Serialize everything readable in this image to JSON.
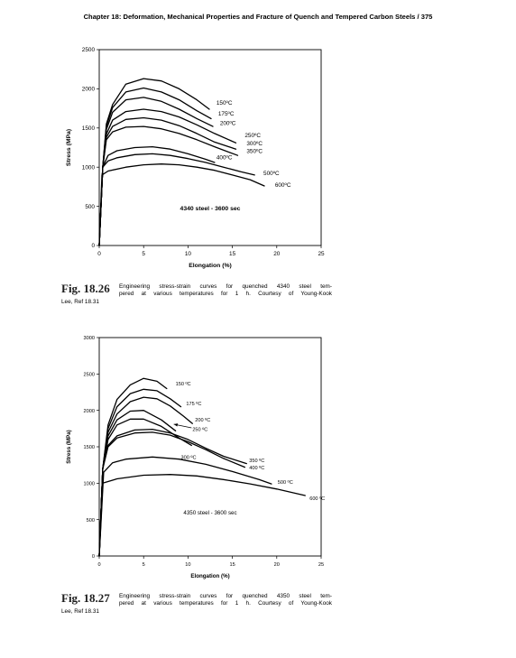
{
  "running_head": "Chapter 18: Deformation, Mechanical Properties and Fracture of Quench and Tempered Carbon Steels / 375",
  "figures": [
    {
      "label": "Fig. 18.26",
      "caption_lines": [
        "Engineering stress-strain curves for quenched 4340 steel tem-",
        "pered at various temperatures for 1 h. Courtesy of Young-Kook"
      ],
      "caption_tail": "Lee, Ref 18.31"
    },
    {
      "label": "Fig. 18.27",
      "caption_lines": [
        "Engineering stress-strain curves for quenched 4350 steel tem-",
        "pered at various temperatures for 1 h. Courtesy of Young-Kook"
      ],
      "caption_tail": "Lee, Ref 18.31"
    }
  ],
  "chart_data": [
    {
      "type": "line",
      "annotation": "4340 steel - 3600 sec",
      "xlabel": "Elongation (%)",
      "ylabel": "Stress (MPa)",
      "xlim": [
        0,
        25
      ],
      "ylim": [
        0,
        2500
      ],
      "xticks": [
        0,
        5,
        10,
        15,
        20,
        25
      ],
      "yticks": [
        0,
        500,
        1000,
        1500,
        2000,
        2500
      ],
      "grid": false,
      "series": [
        {
          "name": "150ºC",
          "points": [
            [
              0,
              0
            ],
            [
              0.4,
              1000
            ],
            [
              0.8,
              1550
            ],
            [
              1.5,
              1800
            ],
            [
              3,
              2060
            ],
            [
              5,
              2130
            ],
            [
              7,
              2100
            ],
            [
              9,
              2000
            ],
            [
              11,
              1860
            ],
            [
              12.4,
              1740
            ]
          ]
        },
        {
          "name": "175ºC",
          "points": [
            [
              0,
              0
            ],
            [
              0.4,
              1000
            ],
            [
              0.8,
              1520
            ],
            [
              1.5,
              1760
            ],
            [
              3,
              1960
            ],
            [
              5,
              2010
            ],
            [
              7,
              1960
            ],
            [
              9,
              1860
            ],
            [
              11,
              1720
            ],
            [
              12.6,
              1620
            ]
          ]
        },
        {
          "name": "200ºC",
          "points": [
            [
              0,
              0
            ],
            [
              0.4,
              1000
            ],
            [
              0.8,
              1480
            ],
            [
              1.5,
              1700
            ],
            [
              3,
              1860
            ],
            [
              5,
              1890
            ],
            [
              7,
              1840
            ],
            [
              9,
              1740
            ],
            [
              11,
              1620
            ],
            [
              12.8,
              1520
            ]
          ]
        },
        {
          "name": "250ºC",
          "points": [
            [
              0,
              0
            ],
            [
              0.4,
              1000
            ],
            [
              0.8,
              1420
            ],
            [
              1.5,
              1600
            ],
            [
              3,
              1710
            ],
            [
              5,
              1740
            ],
            [
              7,
              1710
            ],
            [
              9,
              1640
            ],
            [
              11,
              1540
            ],
            [
              13,
              1430
            ],
            [
              15.4,
              1310
            ]
          ]
        },
        {
          "name": "300ºC",
          "points": [
            [
              0,
              0
            ],
            [
              0.4,
              1000
            ],
            [
              0.8,
              1380
            ],
            [
              1.5,
              1520
            ],
            [
              3,
              1610
            ],
            [
              5,
              1630
            ],
            [
              7,
              1600
            ],
            [
              9,
              1530
            ],
            [
              11,
              1430
            ],
            [
              13,
              1320
            ],
            [
              15.4,
              1230
            ]
          ]
        },
        {
          "name": "350ºC",
          "points": [
            [
              0,
              0
            ],
            [
              0.4,
              1000
            ],
            [
              0.8,
              1350
            ],
            [
              1.5,
              1450
            ],
            [
              3,
              1510
            ],
            [
              5,
              1520
            ],
            [
              7,
              1490
            ],
            [
              9,
              1430
            ],
            [
              11,
              1350
            ],
            [
              13,
              1260
            ],
            [
              15.6,
              1150
            ]
          ]
        },
        {
          "name": "400ºC",
          "points": [
            [
              0,
              0
            ],
            [
              0.4,
              1000
            ],
            [
              1,
              1150
            ],
            [
              2,
              1210
            ],
            [
              4,
              1250
            ],
            [
              6,
              1260
            ],
            [
              8,
              1230
            ],
            [
              10,
              1170
            ],
            [
              12,
              1100
            ],
            [
              13,
              1060
            ]
          ]
        },
        {
          "name": "500ºC",
          "points": [
            [
              0,
              0
            ],
            [
              0.4,
              1000
            ],
            [
              1,
              1080
            ],
            [
              2,
              1120
            ],
            [
              4,
              1160
            ],
            [
              6,
              1170
            ],
            [
              8,
              1150
            ],
            [
              10,
              1110
            ],
            [
              12,
              1060
            ],
            [
              14,
              1000
            ],
            [
              16,
              940
            ],
            [
              17.5,
              900
            ]
          ]
        },
        {
          "name": "600ºC",
          "points": [
            [
              0,
              0
            ],
            [
              0.3,
              900
            ],
            [
              1,
              950
            ],
            [
              3,
              1000
            ],
            [
              5,
              1030
            ],
            [
              7,
              1040
            ],
            [
              9,
              1030
            ],
            [
              11,
              1000
            ],
            [
              13,
              960
            ],
            [
              15,
              900
            ],
            [
              17,
              840
            ],
            [
              18.6,
              760
            ]
          ]
        }
      ],
      "labels": [
        {
          "text": "150ºC",
          "x": 13.2,
          "y": 1800
        },
        {
          "text": "175ºC",
          "x": 13.4,
          "y": 1660
        },
        {
          "text": "200ºC",
          "x": 13.6,
          "y": 1540
        },
        {
          "text": "250ºC",
          "x": 16.4,
          "y": 1380
        },
        {
          "text": "300ºC",
          "x": 16.6,
          "y": 1280
        },
        {
          "text": "350ºC",
          "x": 16.6,
          "y": 1180
        },
        {
          "text": "400ºC",
          "x": 13.2,
          "y": 1100
        },
        {
          "text": "500ºC",
          "x": 18.5,
          "y": 900
        },
        {
          "text": "600ºC",
          "x": 19.8,
          "y": 750
        }
      ]
    },
    {
      "type": "line",
      "annotation": "4350 steel - 3600 sec",
      "xlabel": "Elongation (%)",
      "ylabel": "Stress (MPa)",
      "xlim": [
        0,
        25
      ],
      "ylim": [
        0,
        3000
      ],
      "xticks": [
        0,
        5,
        10,
        15,
        20,
        25
      ],
      "yticks": [
        0,
        500,
        1000,
        1500,
        2000,
        2500,
        3000
      ],
      "grid": false,
      "series": [
        {
          "name": "150 ºC",
          "points": [
            [
              0,
              0
            ],
            [
              0.4,
              1200
            ],
            [
              1,
              1800
            ],
            [
              2,
              2150
            ],
            [
              3.5,
              2350
            ],
            [
              5,
              2440
            ],
            [
              6.5,
              2400
            ],
            [
              7.6,
              2300
            ]
          ]
        },
        {
          "name": "175 ºC",
          "points": [
            [
              0,
              0
            ],
            [
              0.4,
              1200
            ],
            [
              1,
              1750
            ],
            [
              2,
              2050
            ],
            [
              3.5,
              2230
            ],
            [
              5,
              2290
            ],
            [
              6.5,
              2270
            ],
            [
              8,
              2160
            ],
            [
              9.2,
              2050
            ]
          ]
        },
        {
          "name": "200 ºC",
          "points": [
            [
              0,
              0
            ],
            [
              0.4,
              1200
            ],
            [
              1,
              1700
            ],
            [
              2,
              1950
            ],
            [
              3.5,
              2120
            ],
            [
              5,
              2180
            ],
            [
              6.5,
              2160
            ],
            [
              8,
              2060
            ],
            [
              9.5,
              1920
            ],
            [
              10.5,
              1820
            ]
          ]
        },
        {
          "name": "250 ºC",
          "points": [
            [
              0,
              0
            ],
            [
              0.4,
              1200
            ],
            [
              1,
              1650
            ],
            [
              2,
              1870
            ],
            [
              3.5,
              1990
            ],
            [
              5,
              2000
            ],
            [
              7,
              1870
            ],
            [
              8.6,
              1720
            ]
          ]
        },
        {
          "name": "300 ºC",
          "points": [
            [
              0,
              0
            ],
            [
              0.4,
              1200
            ],
            [
              1,
              1600
            ],
            [
              2,
              1800
            ],
            [
              3.5,
              1880
            ],
            [
              5,
              1880
            ],
            [
              7,
              1780
            ],
            [
              9,
              1620
            ],
            [
              10.4,
              1520
            ]
          ]
        },
        {
          "name": "350 ºC",
          "points": [
            [
              0,
              0
            ],
            [
              0.4,
              1200
            ],
            [
              1,
              1520
            ],
            [
              2,
              1650
            ],
            [
              4,
              1730
            ],
            [
              6,
              1740
            ],
            [
              8,
              1690
            ],
            [
              10,
              1600
            ],
            [
              12,
              1480
            ],
            [
              14,
              1370
            ],
            [
              16.6,
              1270
            ]
          ]
        },
        {
          "name": "400 ºC",
          "points": [
            [
              0,
              0
            ],
            [
              0.4,
              1200
            ],
            [
              1,
              1500
            ],
            [
              2,
              1620
            ],
            [
              4,
              1690
            ],
            [
              6,
              1700
            ],
            [
              8,
              1660
            ],
            [
              10,
              1570
            ],
            [
              12,
              1460
            ],
            [
              14,
              1340
            ],
            [
              16.4,
              1220
            ]
          ]
        },
        {
          "name": "500 ºC",
          "points": [
            [
              0,
              0
            ],
            [
              0.5,
              1150
            ],
            [
              1.5,
              1280
            ],
            [
              3,
              1330
            ],
            [
              6,
              1360
            ],
            [
              9,
              1330
            ],
            [
              12,
              1260
            ],
            [
              15,
              1160
            ],
            [
              18,
              1050
            ],
            [
              19.4,
              990
            ]
          ]
        },
        {
          "name": "600 ºC",
          "points": [
            [
              0,
              0
            ],
            [
              0.4,
              1000
            ],
            [
              2,
              1060
            ],
            [
              5,
              1110
            ],
            [
              8,
              1120
            ],
            [
              11,
              1100
            ],
            [
              14,
              1050
            ],
            [
              17,
              990
            ],
            [
              20,
              920
            ],
            [
              23.2,
              830
            ]
          ]
        }
      ],
      "labels": [
        {
          "text": "150 ºC",
          "x": 8.6,
          "y": 2340
        },
        {
          "text": "175 ºC",
          "x": 9.8,
          "y": 2070
        },
        {
          "text": "200 ºC",
          "x": 10.8,
          "y": 1850
        },
        {
          "text": "250 ºC",
          "x": 10.5,
          "y": 1720
        },
        {
          "text": "300 ºC",
          "x": 9.2,
          "y": 1330
        },
        {
          "text": "350 ºC",
          "x": 16.9,
          "y": 1290
        },
        {
          "text": "400 ºC",
          "x": 16.9,
          "y": 1190
        },
        {
          "text": "500 ºC",
          "x": 20.1,
          "y": 990
        },
        {
          "text": "600 ºC",
          "x": 23.7,
          "y": 770
        }
      ],
      "pointer": {
        "label": "250 ºC",
        "tail": [
          10.4,
          1760
        ],
        "head": [
          8.4,
          1810
        ]
      }
    }
  ]
}
